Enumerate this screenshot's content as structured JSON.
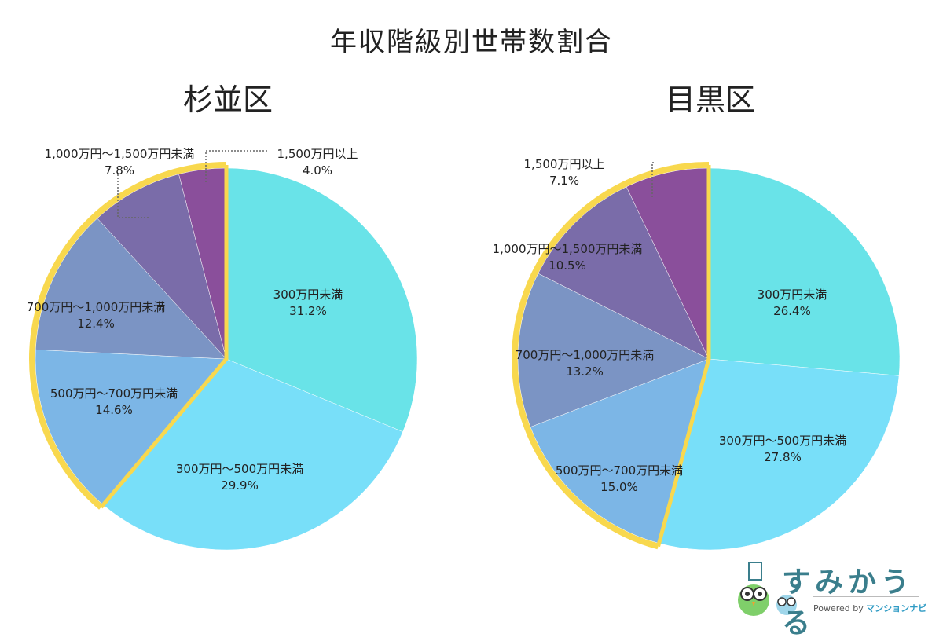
{
  "title": "年収階級別世帯数割合",
  "chart_data": [
    {
      "type": "pie",
      "title": "杉並区",
      "categories": [
        "300万円未満",
        "300万円～500万円未満",
        "500万円～700万円未満",
        "700万円～1,000万円未満",
        "1,000万円～1,500万円未満",
        "1,500万円以上"
      ],
      "values": [
        31.2,
        29.9,
        14.6,
        12.4,
        7.8,
        4.0
      ],
      "value_labels": [
        "31.2%",
        "29.9%",
        "14.6%",
        "12.4%",
        "7.8%",
        "4.0%"
      ],
      "colors": [
        "#69e3e8",
        "#78dff9",
        "#7cb6e6",
        "#7b94c4",
        "#7a6ca9",
        "#8a4f9b"
      ],
      "highlight": {
        "categories": [
          "500万円～700万円未満",
          "700万円～1,000万円未満",
          "1,000万円～1,500万円未満",
          "1,500万円以上"
        ],
        "color": "#f8d84e"
      }
    },
    {
      "type": "pie",
      "title": "目黒区",
      "categories": [
        "300万円未満",
        "300万円～500万円未満",
        "500万円～700万円未満",
        "700万円～1,000万円未満",
        "1,000万円～1,500万円未満",
        "1,500万円以上"
      ],
      "values": [
        26.4,
        27.8,
        15.0,
        13.2,
        10.5,
        7.1
      ],
      "value_labels": [
        "26.4%",
        "27.8%",
        "15.0%",
        "13.2%",
        "10.5%",
        "7.1%"
      ],
      "colors": [
        "#69e3e8",
        "#78dff9",
        "#7cb6e6",
        "#7b94c4",
        "#7a6ca9",
        "#8a4f9b"
      ],
      "highlight": {
        "categories": [
          "500万円～700万円未満",
          "700万円～1,000万円未満",
          "1,000万円～1,500万円未満",
          "1,500万円以上"
        ],
        "color": "#f8d84e"
      }
    }
  ],
  "logo": {
    "name": "すみかうる",
    "powered_by": "Powered by",
    "brand": "マンションナビ"
  }
}
